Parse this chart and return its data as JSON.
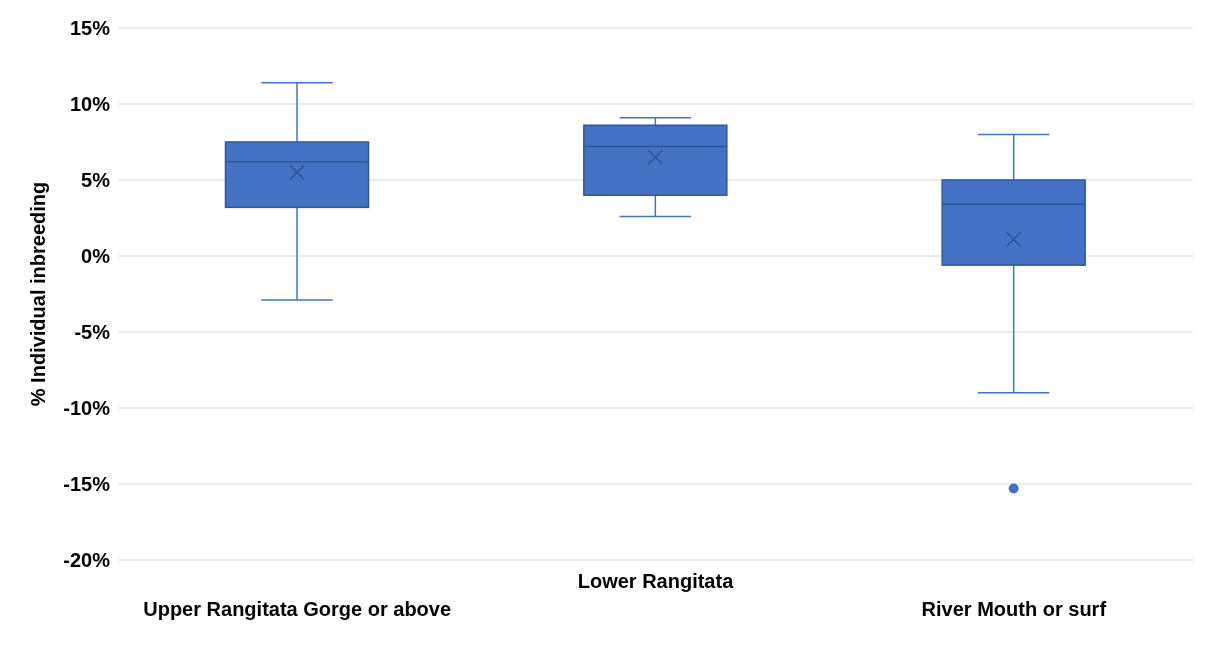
{
  "chart_data": {
    "type": "box",
    "ylabel": "% Individual inbreeding",
    "categories": [
      "Upper Rangitata Gorge or above",
      "Lower Rangitata",
      "River Mouth or surf"
    ],
    "color": "#4472c4",
    "boxes": [
      {
        "low": -2.9,
        "q1": 3.2,
        "median": 6.2,
        "q3": 7.5,
        "high": 11.4,
        "mean": 5.5
      },
      {
        "low": 2.6,
        "q1": 4.0,
        "median": 7.2,
        "q3": 8.6,
        "high": 9.1,
        "mean": 6.5
      },
      {
        "low": -9.0,
        "q1": -0.6,
        "median": 3.4,
        "q3": 5.0,
        "high": 8.0,
        "mean": 1.1,
        "outliers": [
          -15.3
        ]
      }
    ],
    "ylim": [
      -20,
      15
    ],
    "yticks": [
      {
        "value": -20,
        "label": "-20%"
      },
      {
        "value": -15,
        "label": "-15%"
      },
      {
        "value": -10,
        "label": "-10%"
      },
      {
        "value": -5,
        "label": "-5%"
      },
      {
        "value": 0,
        "label": "0%"
      },
      {
        "value": 5,
        "label": "5%"
      },
      {
        "value": 10,
        "label": "10%"
      },
      {
        "value": 15,
        "label": "15%"
      }
    ],
    "grid": "y",
    "legend": false
  }
}
